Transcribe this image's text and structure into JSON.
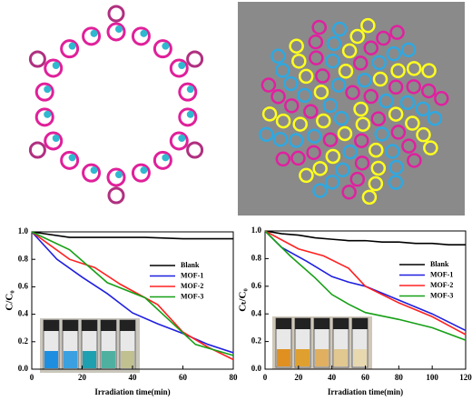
{
  "chart_data": [
    {
      "type": "line",
      "x_label": "Irradiation time(min)",
      "y_label": "C/C₀",
      "xlim": [
        0,
        80
      ],
      "xticks": [
        0,
        20,
        40,
        60,
        80
      ],
      "ylim": [
        0,
        1
      ],
      "yticks": [
        {
          "value": 0,
          "label": "0.0"
        },
        0.2,
        0.4,
        0.6,
        0.8,
        {
          "value": 1,
          "label": "1.0"
        }
      ],
      "series": [
        {
          "name": "Blank",
          "color": "#000000",
          "x": [
            0,
            15,
            30,
            45,
            60,
            80
          ],
          "values": [
            1.0,
            0.96,
            0.96,
            0.96,
            0.95,
            0.95
          ]
        },
        {
          "name": "MOF-1",
          "color": "#1f1fe0",
          "x": [
            0,
            10,
            20,
            30,
            40,
            50,
            60,
            70,
            80
          ],
          "values": [
            1.0,
            0.8,
            0.67,
            0.55,
            0.41,
            0.33,
            0.26,
            0.18,
            0.12
          ]
        },
        {
          "name": "MOF-2",
          "color": "#ff2020",
          "x": [
            0,
            15,
            25,
            35,
            50,
            60,
            70,
            80
          ],
          "values": [
            1.0,
            0.8,
            0.74,
            0.62,
            0.47,
            0.27,
            0.16,
            0.07
          ]
        },
        {
          "name": "MOF-3",
          "color": "#16a016",
          "x": [
            0,
            15,
            30,
            45,
            55,
            65,
            80
          ],
          "values": [
            1.0,
            0.87,
            0.63,
            0.52,
            0.35,
            0.18,
            0.1
          ]
        }
      ]
    },
    {
      "type": "line",
      "x_label": "Irradiation time(min)",
      "y_label": "Cₜ/C₀",
      "xlim": [
        0,
        120
      ],
      "xticks": [
        0,
        20,
        40,
        60,
        80,
        100,
        120
      ],
      "ylim": [
        0,
        1
      ],
      "yticks": [
        {
          "value": 0,
          "label": "0.0"
        },
        0.2,
        0.4,
        0.6,
        0.8,
        {
          "value": 1,
          "label": "1.0"
        }
      ],
      "series": [
        {
          "name": "Blank",
          "color": "#000000",
          "x": [
            0,
            10,
            20,
            30,
            40,
            50,
            60,
            70,
            80,
            90,
            100,
            110,
            120
          ],
          "values": [
            1.0,
            0.98,
            0.97,
            0.95,
            0.94,
            0.93,
            0.93,
            0.92,
            0.92,
            0.91,
            0.91,
            0.9,
            0.9
          ]
        },
        {
          "name": "MOF-1",
          "color": "#1f1fe0",
          "x": [
            0,
            10,
            25,
            40,
            50,
            60,
            80,
            100,
            120
          ],
          "values": [
            1.0,
            0.88,
            0.78,
            0.67,
            0.63,
            0.6,
            0.5,
            0.4,
            0.28
          ]
        },
        {
          "name": "MOF-2",
          "color": "#ff2020",
          "x": [
            0,
            20,
            35,
            50,
            60,
            80,
            100,
            120
          ],
          "values": [
            1.0,
            0.87,
            0.82,
            0.73,
            0.6,
            0.48,
            0.38,
            0.25
          ]
        },
        {
          "name": "MOF-3",
          "color": "#16a016",
          "x": [
            0,
            15,
            30,
            40,
            50,
            60,
            80,
            100,
            120
          ],
          "values": [
            1.0,
            0.82,
            0.66,
            0.54,
            0.47,
            0.41,
            0.36,
            0.3,
            0.21
          ]
        }
      ]
    }
  ]
}
